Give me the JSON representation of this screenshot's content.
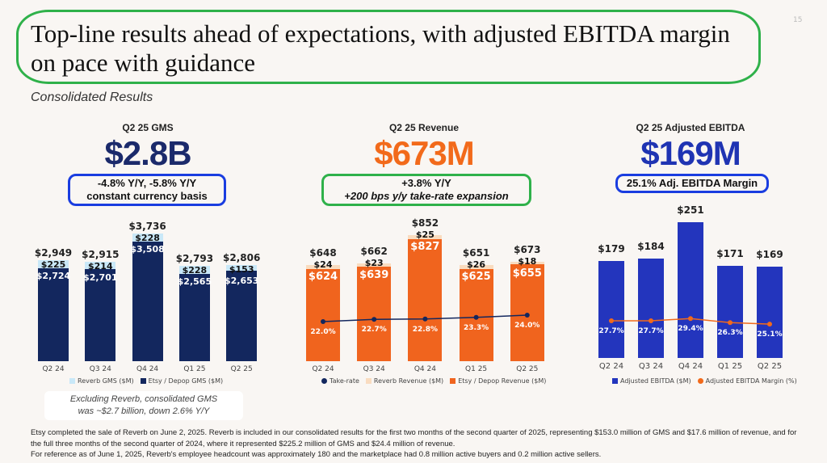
{
  "page": {
    "title": "Top-line results ahead of expectations, with adjusted EBITDA margin on pace with guidance",
    "page_number": "15",
    "subtitle": "Consolidated Results"
  },
  "kpis": [
    {
      "label": "Q2 25 GMS",
      "value": "$2.8B",
      "note_lines": [
        "-4.8% Y/Y, -5.8% Y/Y",
        "constant currency basis"
      ],
      "color": "#1b2a6b",
      "box_color": "#1a3de0"
    },
    {
      "label": "Q2 25 Revenue",
      "value": "$673M",
      "note_lines": [
        "+3.8% Y/Y",
        "+200 bps y/y take-rate expansion"
      ],
      "color": "#f26a1b",
      "box_color": "#2fb14a"
    },
    {
      "label": "Q2 25 Adjusted EBITDA",
      "value": "$169M",
      "note_lines": [
        "25.1% Adj. EBITDA Margin"
      ],
      "color": "#1f34b3",
      "box_color": "#1a3de0"
    }
  ],
  "gms_note": [
    "Excluding Reverb, consolidated GMS",
    "was ~$2.7 billion, down 2.6% Y/Y"
  ],
  "footer": [
    "Etsy completed the sale of Reverb on June 2, 2025.  Reverb is included in our consolidated results for the first two months of the second quarter of 2025, representing $153.0 million of GMS and $17.6 million of revenue, and for the full three months of the second quarter of 2024, where it represented $225.2 million of GMS and $24.4 million of revenue.",
    "For reference as of June 1, 2025,  Reverb's employee headcount was approximately 180 and the marketplace had 0.8 million active buyers and 0.2 million active sellers."
  ],
  "chart_data": [
    {
      "type": "bar",
      "stacked": true,
      "title": "Q2 25 GMS",
      "categories": [
        "Q2 24",
        "Q3 24",
        "Q4 24",
        "Q1 25",
        "Q2 25"
      ],
      "series": [
        {
          "name": "Etsy / Depop GMS ($M)",
          "values": [
            2724,
            2701,
            3508,
            2565,
            2653
          ],
          "labels": [
            "$2,724",
            "$2,701",
            "$3,508",
            "$2,565",
            "$2,653"
          ],
          "color": "#13275e"
        },
        {
          "name": "Reverb GMS ($M)",
          "values": [
            225,
            214,
            228,
            228,
            153
          ],
          "labels": [
            "$225",
            "$214",
            "$228",
            "$228",
            "$153"
          ],
          "color": "#c9e8f8"
        }
      ],
      "totals": [
        "$2,949",
        "$2,915",
        "$3,736",
        "$2,793",
        "$2,806"
      ],
      "ylim": [
        0,
        3736
      ]
    },
    {
      "type": "bar",
      "stacked": true,
      "title": "Q2 25 Revenue",
      "categories": [
        "Q2 24",
        "Q3 24",
        "Q4 24",
        "Q1 25",
        "Q2 25"
      ],
      "series": [
        {
          "name": "Etsy / Depop Revenue ($M)",
          "values": [
            624,
            639,
            827,
            625,
            655
          ],
          "labels": [
            "$624",
            "$639",
            "$827",
            "$625",
            "$655"
          ],
          "color": "#f0641e"
        },
        {
          "name": "Reverb Revenue ($M)",
          "values": [
            24,
            23,
            25,
            26,
            18
          ],
          "labels": [
            "$24",
            "$23",
            "$25",
            "$26",
            "$18"
          ],
          "color": "#f9dcc0"
        }
      ],
      "totals": [
        "$648",
        "$662",
        "$852",
        "$651",
        "$673"
      ],
      "line": {
        "name": "Take-rate",
        "values": [
          22.0,
          22.7,
          22.8,
          23.3,
          24.0
        ],
        "labels": [
          "22.0%",
          "22.7%",
          "22.8%",
          "23.3%",
          "24.0%"
        ],
        "color": "#13275e"
      },
      "ylim": [
        0,
        852
      ]
    },
    {
      "type": "bar",
      "stacked": false,
      "title": "Q2 25 Adjusted EBITDA",
      "categories": [
        "Q2 24",
        "Q3 24",
        "Q4 24",
        "Q1 25",
        "Q2 25"
      ],
      "series": [
        {
          "name": "Adjusted EBITDA ($M)",
          "values": [
            179,
            184,
            251,
            171,
            169
          ],
          "labels": [],
          "color": "#2335bd"
        }
      ],
      "totals": [
        "$179",
        "$184",
        "$251",
        "$171",
        "$169"
      ],
      "line": {
        "name": "Adjusted EBITDA Margin (%)",
        "values": [
          27.7,
          27.7,
          29.4,
          26.3,
          25.1
        ],
        "labels": [
          "27.7%",
          "27.7%",
          "29.4%",
          "26.3%",
          "25.1%"
        ],
        "color": "#f26a1b"
      },
      "ylim": [
        0,
        251
      ]
    }
  ]
}
